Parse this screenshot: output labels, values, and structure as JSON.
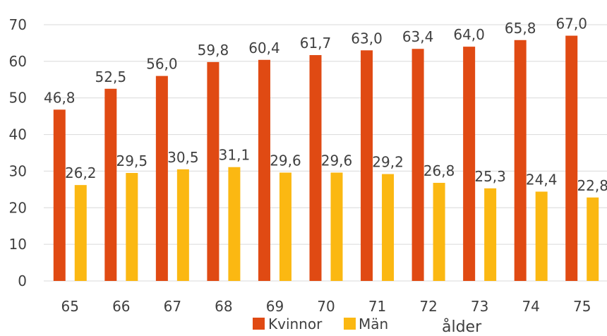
{
  "chart_data": {
    "type": "bar",
    "categories": [
      "65",
      "66",
      "67",
      "68",
      "69",
      "70",
      "71",
      "72",
      "73",
      "74",
      "75"
    ],
    "series": [
      {
        "name": "Kvinnor",
        "color": "#e04a13",
        "values": [
          46.8,
          52.5,
          56.0,
          59.8,
          60.4,
          61.7,
          63.0,
          63.4,
          64.0,
          65.8,
          67.0
        ],
        "labels": [
          "46,8",
          "52,5",
          "56,0",
          "59,8",
          "60,4",
          "61,7",
          "63,0",
          "63,4",
          "64,0",
          "65,8",
          "67,0"
        ]
      },
      {
        "name": "Män",
        "color": "#fbb812",
        "values": [
          26.2,
          29.5,
          30.5,
          31.1,
          29.6,
          29.6,
          29.2,
          26.8,
          25.3,
          24.4,
          22.8
        ],
        "labels": [
          "26,2",
          "29,5",
          "30,5",
          "31,1",
          "29,6",
          "29,6",
          "29,2",
          "26,8",
          "25,3",
          "24,4",
          "22,8"
        ]
      }
    ],
    "xlabel": "ålder",
    "ylabel": "",
    "ylim": [
      0,
      70
    ],
    "yticks": [
      "0",
      "10",
      "20",
      "30",
      "40",
      "50",
      "60",
      "70"
    ],
    "grid": true,
    "legend": "bottom"
  }
}
